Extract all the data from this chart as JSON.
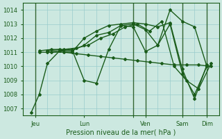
{
  "title": "Pression niveau de la mer( hPa )",
  "background_color": "#cce8e0",
  "grid_color": "#99cccc",
  "line_color": "#1a5c1a",
  "vline_color": "#336633",
  "xlim": [
    0,
    96
  ],
  "ylim": [
    1006.5,
    1014.5
  ],
  "yticks": [
    1007,
    1008,
    1009,
    1010,
    1011,
    1012,
    1013,
    1014
  ],
  "xtick_positions": [
    6,
    30,
    54,
    60,
    78,
    90
  ],
  "xtick_labels": [
    "Jeu",
    "Lun",
    "",
    "Ven",
    "Sam",
    "Dim"
  ],
  "vlines": [
    6,
    54,
    60,
    78,
    90
  ],
  "series": [
    {
      "x": [
        4,
        8,
        12,
        18,
        24,
        30,
        36,
        42,
        48,
        54,
        60,
        66,
        72,
        78,
        84,
        90
      ],
      "y": [
        1006.7,
        1008.0,
        1010.2,
        1011.1,
        1011.2,
        1009.0,
        1008.8,
        1011.2,
        1012.9,
        1012.8,
        1011.05,
        1011.5,
        1014.0,
        1013.2,
        1012.8,
        1010.0
      ],
      "marker": "D",
      "markersize": 2,
      "linewidth": 1.0
    },
    {
      "x": [
        8,
        14,
        20,
        26,
        32,
        38,
        44,
        50,
        56,
        62,
        68,
        74,
        80,
        86,
        92
      ],
      "y": [
        1011.0,
        1011.0,
        1011.0,
        1010.9,
        1010.8,
        1010.7,
        1010.6,
        1010.5,
        1010.4,
        1010.3,
        1010.2,
        1010.1,
        1010.1,
        1010.1,
        1010.0
      ],
      "marker": "D",
      "markersize": 2,
      "linewidth": 1.0
    },
    {
      "x": [
        8,
        14,
        20,
        26,
        32,
        38,
        44,
        50,
        56,
        62,
        68,
        74,
        80,
        86,
        92
      ],
      "y": [
        1011.1,
        1011.2,
        1011.2,
        1011.3,
        1011.5,
        1012.0,
        1012.3,
        1012.8,
        1013.0,
        1012.5,
        1013.2,
        1010.0,
        1009.0,
        1008.4,
        1010.2
      ],
      "marker": "D",
      "markersize": 2,
      "linewidth": 1.0
    },
    {
      "x": [
        12,
        18,
        24,
        30,
        36,
        42,
        48,
        54,
        60,
        66,
        72,
        78,
        84,
        90
      ],
      "y": [
        1011.1,
        1011.2,
        1011.1,
        1011.5,
        1012.2,
        1012.4,
        1012.9,
        1013.0,
        1012.6,
        1011.5,
        1013.0,
        1009.5,
        1008.0,
        1010.0
      ],
      "marker": "D",
      "markersize": 2,
      "linewidth": 1.0
    },
    {
      "x": [
        12,
        18,
        24,
        30,
        36,
        42,
        48,
        54,
        60,
        66,
        72,
        78,
        84,
        90
      ],
      "y": [
        1011.0,
        1011.1,
        1011.0,
        1012.0,
        1012.5,
        1012.9,
        1013.0,
        1013.1,
        1013.0,
        1012.8,
        1013.1,
        1009.8,
        1007.7,
        1010.1
      ],
      "marker": "D",
      "markersize": 2,
      "linewidth": 1.0
    }
  ]
}
